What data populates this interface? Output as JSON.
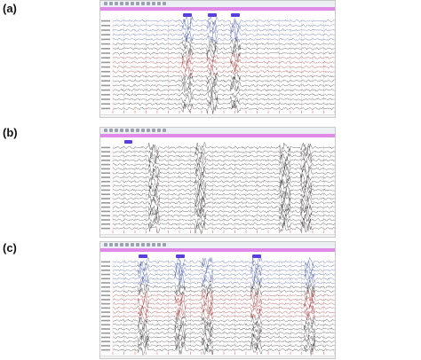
{
  "colors": {
    "timebar": "#e08ae8",
    "marker": "#5a3fe0",
    "trace_blue": "#3a4fa0",
    "trace_red": "#9a2a2a",
    "trace_dark": "#2a2a2a",
    "gridline": "#d8b0b0",
    "grid_tick": "#e07070"
  },
  "panels": [
    {
      "label": "(a)",
      "markers": [
        "",
        "",
        ""
      ],
      "status": "",
      "channels": 20
    },
    {
      "label": "(b)",
      "markers": [
        ""
      ],
      "status": "",
      "channels": 20
    },
    {
      "label": "(c)",
      "markers": [
        "",
        "",
        ""
      ],
      "status": "",
      "channels": 22
    }
  ],
  "icons": {
    "toolbar": "toolbar-buttons-icon"
  }
}
